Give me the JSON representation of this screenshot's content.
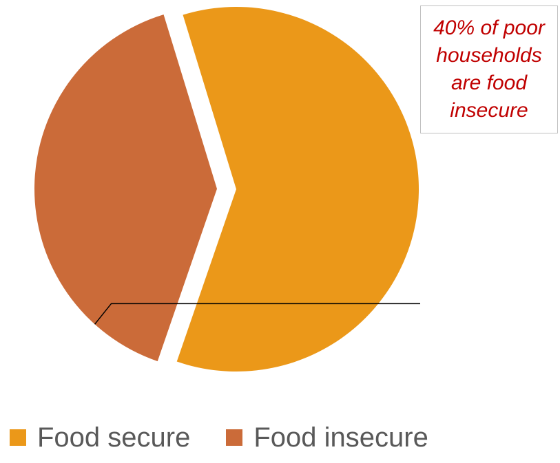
{
  "chart_data": {
    "type": "pie",
    "title": "",
    "categories": [
      "Food secure",
      "Food insecure"
    ],
    "values": [
      60,
      40
    ],
    "unit": "%",
    "exploded": [
      "Food insecure"
    ],
    "colors": [
      "#eb9819",
      "#cb6b39"
    ],
    "legend_position": "bottom",
    "annotation": {
      "text": "40% of poor households are food insecure",
      "target": "Food insecure",
      "color": "#c00000"
    }
  },
  "legend": {
    "items": [
      {
        "label": "Food secure",
        "color": "#eb9819"
      },
      {
        "label": "Food insecure",
        "color": "#cb6b39"
      }
    ]
  }
}
